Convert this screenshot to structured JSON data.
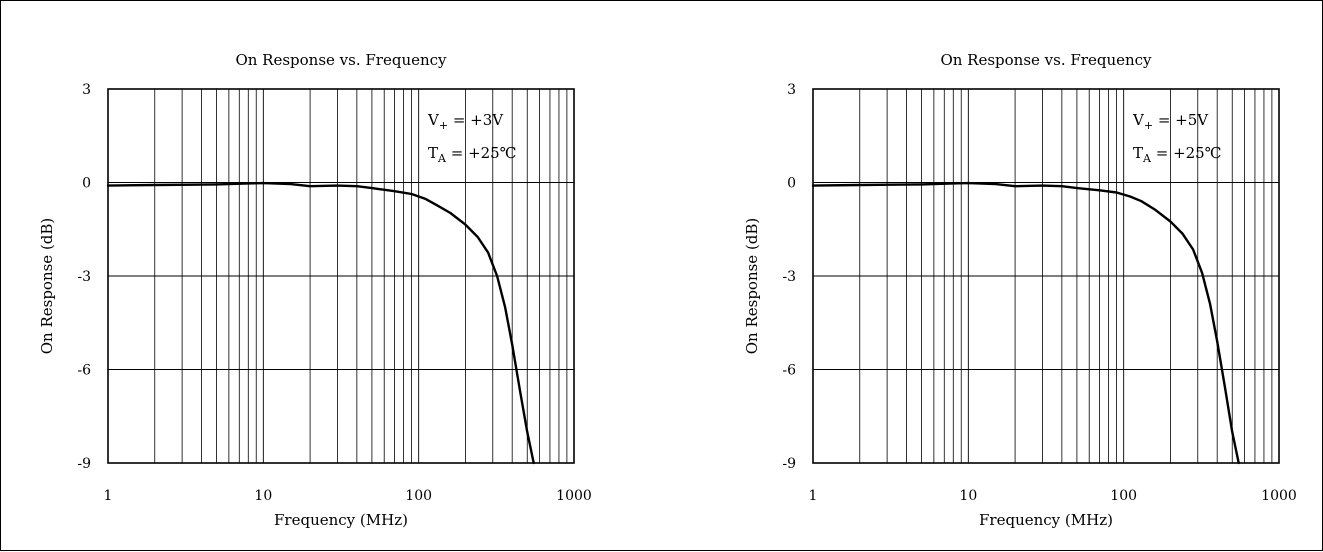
{
  "chart_data": [
    {
      "type": "line",
      "title": "On Response vs. Frequency",
      "xlabel": "Frequency (MHz)",
      "ylabel": "On Response (dB)",
      "x_scale": "log",
      "xlim": [
        1,
        1000
      ],
      "ylim": [
        -9,
        3
      ],
      "x_ticks": [
        "1",
        "10",
        "100",
        "1000"
      ],
      "y_ticks": [
        "3",
        "0",
        "-3",
        "-6",
        "-9"
      ],
      "grid": true,
      "annotation": {
        "vplus_text": "V+ = +3V",
        "ta_text": "TA = +25℃"
      },
      "series": [
        {
          "x": [
            1,
            2,
            5,
            8,
            10,
            15,
            20,
            30,
            40,
            50,
            70,
            90,
            110,
            130,
            160,
            200,
            240,
            280,
            320,
            360,
            400,
            450,
            500,
            550
          ],
          "y": [
            -0.1,
            -0.08,
            -0.06,
            -0.03,
            -0.02,
            -0.05,
            -0.12,
            -0.1,
            -0.12,
            -0.18,
            -0.28,
            -0.37,
            -0.52,
            -0.72,
            -0.98,
            -1.35,
            -1.75,
            -2.25,
            -3.0,
            -4.0,
            -5.2,
            -6.7,
            -8.0,
            -9.0
          ],
          "color": "#000000"
        }
      ]
    },
    {
      "type": "line",
      "title": "On Response vs. Frequency",
      "xlabel": "Frequency (MHz)",
      "ylabel": "On Response (dB)",
      "x_scale": "log",
      "xlim": [
        1,
        1000
      ],
      "ylim": [
        -9,
        3
      ],
      "x_ticks": [
        "1",
        "10",
        "100",
        "1000"
      ],
      "y_ticks": [
        "3",
        "0",
        "-3",
        "-6",
        "-9"
      ],
      "grid": true,
      "annotation": {
        "vplus_text": "V+ = +5V",
        "ta_text": "TA = +25℃"
      },
      "series": [
        {
          "x": [
            1,
            2,
            5,
            8,
            10,
            15,
            20,
            30,
            40,
            50,
            70,
            90,
            110,
            130,
            160,
            200,
            240,
            280,
            320,
            360,
            400,
            450,
            500,
            550
          ],
          "y": [
            -0.1,
            -0.08,
            -0.06,
            -0.03,
            -0.02,
            -0.05,
            -0.12,
            -0.1,
            -0.12,
            -0.18,
            -0.25,
            -0.32,
            -0.45,
            -0.6,
            -0.88,
            -1.25,
            -1.65,
            -2.15,
            -2.9,
            -3.9,
            -5.1,
            -6.6,
            -8.0,
            -9.0
          ],
          "color": "#000000"
        }
      ]
    }
  ]
}
